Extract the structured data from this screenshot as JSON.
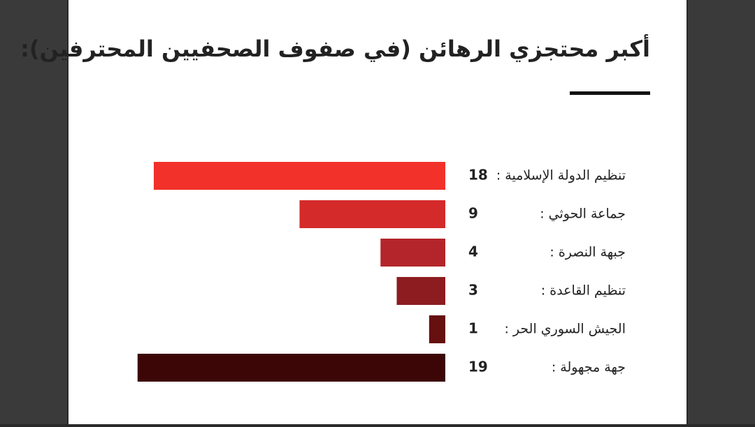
{
  "chart_data": {
    "type": "bar",
    "orientation": "horizontal",
    "title": "أكبر محتجزي الرهائن (في صفوف الصحفيين المحترفين):",
    "categories": [
      "تنظيم الدولة الإسلامية :",
      "جماعة الحوثي :",
      "جبهة النصرة :",
      "تنظيم القاعدة :",
      "الجيش السوري الحر :",
      "جهة مجهولة :"
    ],
    "values": [
      18,
      9,
      4,
      3,
      1,
      19
    ],
    "colors": [
      "#f2312a",
      "#d42a2a",
      "#b3252a",
      "#8c1c1f",
      "#661010",
      "#3d0606"
    ]
  }
}
